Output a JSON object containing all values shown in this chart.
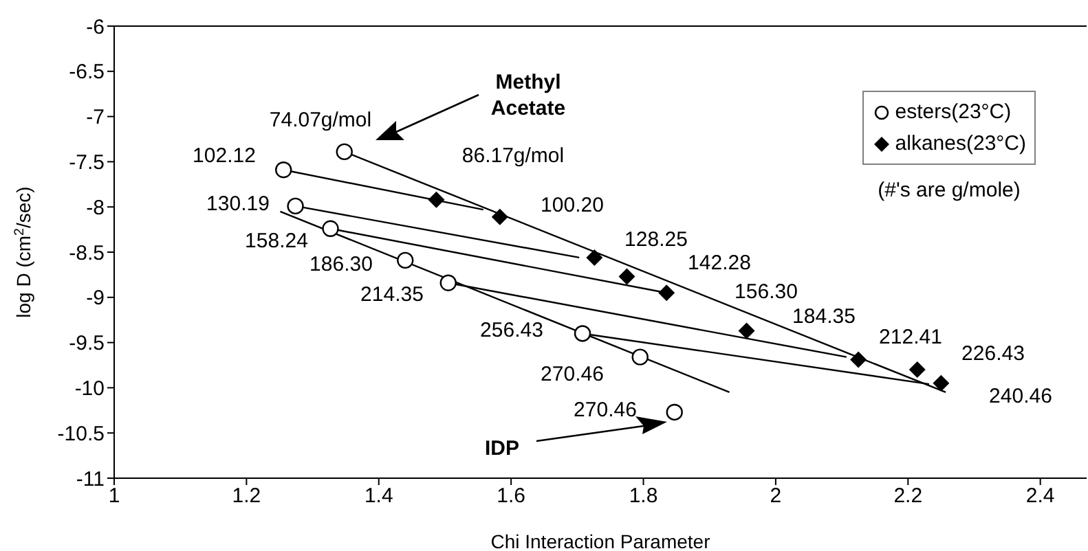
{
  "chart_data": {
    "type": "scatter",
    "xlabel": "Chi Interaction Parameter",
    "ylabel": "log D (cm$^{2}$/sec)",
    "xlim": [
      1,
      2.47
    ],
    "xticks": [
      1,
      1.2,
      1.4,
      1.6,
      1.8,
      2,
      2.2,
      2.4
    ],
    "ylim": [
      -11,
      -6
    ],
    "yticks": [
      -11,
      -10.5,
      -10,
      -9.5,
      -9,
      -8.5,
      -8,
      -7.5,
      -7,
      -6.5,
      -6
    ],
    "grid": false,
    "legend": "top right",
    "series": [
      {
        "name": "esters(23°C)",
        "marker": "circle",
        "color": "#000000",
        "x": [
          1.348,
          1.256,
          1.274,
          1.327,
          1.44,
          1.505,
          1.708,
          1.795,
          1.847
        ],
        "values": [
          -7.39,
          -7.59,
          -7.99,
          -8.24,
          -8.59,
          -8.84,
          -9.4,
          -9.66,
          -10.27
        ]
      },
      {
        "name": "alkanes(23°C)",
        "marker": "diamond",
        "color": "#000000",
        "x": [
          1.487,
          1.583,
          1.726,
          1.775,
          1.835,
          1.956,
          2.125,
          2.214,
          2.25
        ],
        "values": [
          -7.92,
          -8.11,
          -8.56,
          -8.77,
          -8.95,
          -9.37,
          -9.69,
          -9.8,
          -9.95
        ]
      },
      {
        "type": "line",
        "marker": "none",
        "color": "#000000",
        "x": [
          1.348,
          2.257
        ],
        "values": [
          -7.39,
          -10.05
        ]
      },
      {
        "type": "line",
        "marker": "none",
        "color": "#000000",
        "x": [
          1.256,
          1.558
        ],
        "values": [
          -7.59,
          -8.03
        ]
      },
      {
        "type": "line",
        "marker": "none",
        "color": "#000000",
        "x": [
          1.274,
          1.703
        ],
        "values": [
          -7.99,
          -8.56
        ]
      },
      {
        "type": "line",
        "marker": "none",
        "color": "#000000",
        "x": [
          1.327,
          1.835
        ],
        "values": [
          -8.24,
          -8.95
        ]
      },
      {
        "type": "line",
        "marker": "none",
        "color": "#000000",
        "x": [
          1.505,
          2.107
        ],
        "values": [
          -8.84,
          -9.66
        ]
      },
      {
        "type": "line",
        "marker": "none",
        "color": "#000000",
        "x": [
          1.708,
          2.232
        ],
        "values": [
          -9.4,
          -9.96
        ]
      },
      {
        "type": "line",
        "marker": "none",
        "color": "#000000",
        "x": [
          1.251,
          1.93
        ],
        "values": [
          -8.05,
          -10.05
        ]
      }
    ],
    "annotations": [
      "Methyl\nAcetate",
      "IDP",
      "74.07g/mol",
      "102.12",
      "130.19",
      "158.24",
      "186.30",
      "214.35",
      "256.43",
      "270.46",
      "270.46",
      "86.17g/mol",
      "100.20",
      "128.25",
      "142.28",
      "156.30",
      "184.35",
      "212.41",
      "226.43",
      "240.46",
      "(#'s are g/mole)"
    ]
  }
}
